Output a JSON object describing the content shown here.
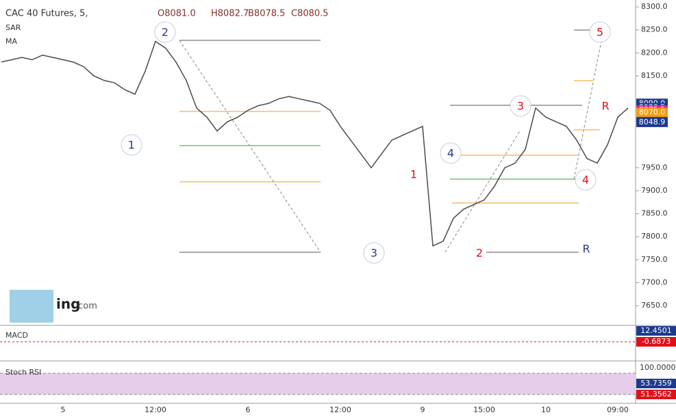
{
  "header": {
    "symbol": "CAC 40 Futures, 5,",
    "open": "O8081.0",
    "high": "H8082.7",
    "bid": "B8078.5",
    "close": "C8080.5"
  },
  "indicators": {
    "sar": "SAR",
    "ma": "MA",
    "macd": "MACD",
    "stoch": "Stoch RSI"
  },
  "panel_values": {
    "macd_1": "12.4501",
    "macd_2": "-0.6873",
    "stoch_top": "100.0000",
    "stoch_1": "53.7359",
    "stoch_2": "51.3562"
  },
  "logo": {
    "name": "ing",
    "suffix": ".com"
  },
  "chart_data": {
    "type": "line",
    "categories": [
      null,
      null,
      null,
      null,
      null,
      null,
      "5",
      null,
      null,
      null,
      null,
      null,
      null,
      null,
      null,
      "12:00",
      null,
      null,
      null,
      null,
      null,
      null,
      null,
      null,
      "6",
      null,
      null,
      null,
      null,
      null,
      null,
      null,
      null,
      "12:00",
      null,
      null,
      null,
      null,
      null,
      null,
      null,
      "9",
      null,
      null,
      null,
      null,
      null,
      "15:00",
      null,
      null,
      null,
      null,
      null,
      "10",
      null,
      null,
      null,
      null,
      null,
      null,
      "09:00",
      null
    ],
    "series": [
      {
        "color": "#4a4a4a",
        "values": [
          8180,
          8185,
          8190,
          8185,
          8195,
          8190,
          8185,
          8180,
          8170,
          8150,
          8140,
          8135,
          8120,
          8110,
          8160,
          8225,
          8210,
          8180,
          8140,
          8080,
          8060,
          8030,
          8050,
          8060,
          8075,
          8085,
          8090,
          8100,
          8105,
          8100,
          8095,
          8090,
          8075,
          8040,
          8010,
          7980,
          7950,
          7980,
          8010,
          8020,
          8030,
          8040,
          7780,
          7790,
          7840,
          7860,
          7870,
          7880,
          7910,
          7950,
          7960,
          7990,
          8080,
          8060,
          8050,
          8040,
          8010,
          7970,
          7960,
          8000,
          8060,
          8080
        ]
      }
    ],
    "ylim": [
      7607,
      8315
    ],
    "yticks": [
      {
        "value": 7650,
        "label": "7650.0"
      },
      {
        "value": 7700,
        "label": "7700.0"
      },
      {
        "value": 7750,
        "label": "7750.0"
      },
      {
        "value": 7800,
        "label": "7800.0"
      },
      {
        "value": 7850,
        "label": "7850.0"
      },
      {
        "value": 7900,
        "label": "7900.0"
      },
      {
        "value": 7950,
        "label": "7950.0"
      },
      {
        "value": 8150,
        "label": "8150.0"
      },
      {
        "value": 8200,
        "label": "8200.0"
      },
      {
        "value": 8250,
        "label": "8250.0"
      },
      {
        "value": 8300,
        "label": "8300.0"
      }
    ],
    "price_tags": [
      {
        "value": 8090,
        "label": "8090.0",
        "color": "#1d3a8c"
      },
      {
        "value": 8080.5,
        "label": "8080.5",
        "color": "#1d3a8c"
      },
      {
        "value": 8075.5,
        "label": "8075.5",
        "color": "#e91e8c"
      },
      {
        "value": 8070,
        "label": "8070.0",
        "color": "#f39c12"
      },
      {
        "value": 8050,
        "label": "8050.0",
        "color": "#1d3a8c"
      },
      {
        "value": 8048.9,
        "label": "8048.9",
        "color": "#1d3a8c"
      }
    ],
    "wave_labels": [
      {
        "text": "2",
        "color": "#2a3a8f"
      },
      {
        "text": "1",
        "color": "#2a3a8f"
      },
      {
        "text": "3",
        "color": "#2a3a8f"
      },
      {
        "text": "4",
        "color": "#2a3a8f"
      },
      {
        "text": "R",
        "color": "#2a3a8f"
      },
      {
        "text": "1",
        "color": "#e0101a"
      },
      {
        "text": "2",
        "color": "#e0101a"
      },
      {
        "text": "3",
        "color": "#e0101a"
      },
      {
        "text": "4",
        "color": "#e0101a"
      },
      {
        "text": "5",
        "color": "#e0101a"
      },
      {
        "text": "R",
        "color": "#e0101a"
      }
    ]
  }
}
